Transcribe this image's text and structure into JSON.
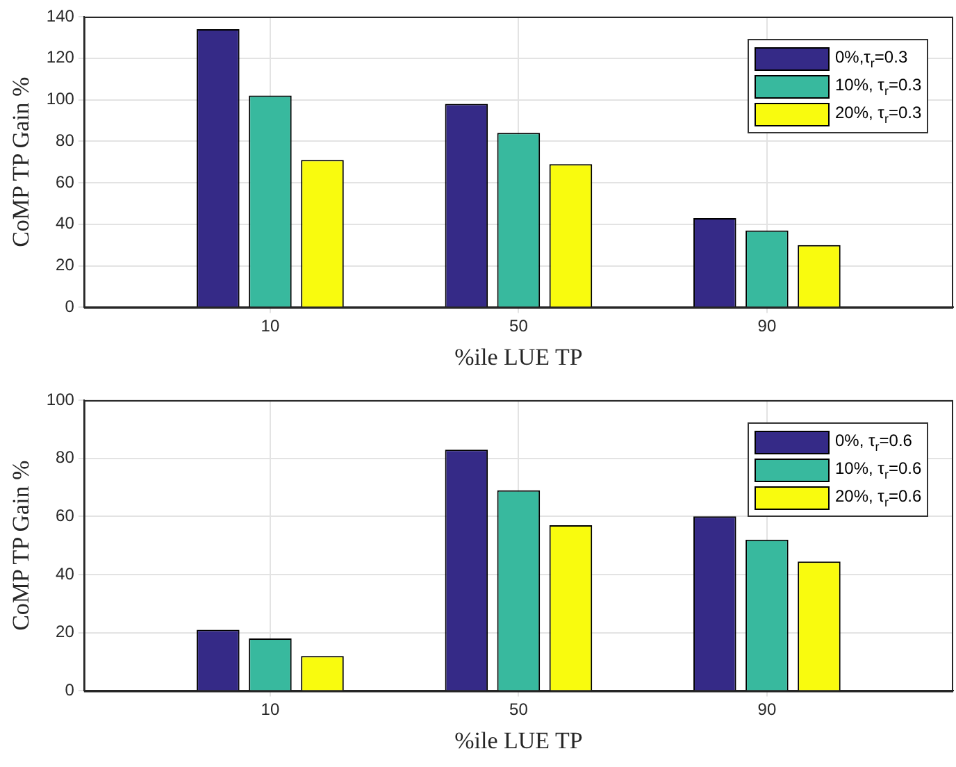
{
  "chart_data": [
    {
      "type": "bar",
      "xlabel": "%ile LUE TP",
      "ylabel": "CoMP TP Gain %",
      "x": [
        10,
        50,
        90
      ],
      "xlim": [
        -20,
        120
      ],
      "xticks": [
        10,
        50,
        90
      ],
      "ylim": [
        0,
        140
      ],
      "yticks": [
        0,
        20,
        40,
        60,
        80,
        100,
        120,
        140
      ],
      "grid": true,
      "legend": "top right",
      "series": [
        {
          "name": "0%,τ$_{r}$=0.3",
          "color": "#352a87",
          "values": [
            134,
            98,
            43
          ]
        },
        {
          "name": "10%, τ$_{r}$=0.3",
          "color": "#38b99e",
          "values": [
            102,
            84,
            37
          ]
        },
        {
          "name": "20%, τ$_{r}$=0.3",
          "color": "#f9fb0e",
          "values": [
            71,
            69,
            30
          ]
        }
      ]
    },
    {
      "type": "bar",
      "xlabel": "%ile LUE TP",
      "ylabel": "CoMP TP Gain %",
      "x": [
        10,
        50,
        90
      ],
      "xlim": [
        -20,
        120
      ],
      "xticks": [
        10,
        50,
        90
      ],
      "ylim": [
        0,
        100
      ],
      "yticks": [
        0,
        20,
        40,
        60,
        80,
        100
      ],
      "grid": true,
      "legend": "top right",
      "series": [
        {
          "name": "0%, τ$_{r}$=0.6",
          "color": "#352a87",
          "values": [
            21,
            83,
            60
          ]
        },
        {
          "name": "10%, τ$_{r}$=0.6",
          "color": "#38b99e",
          "values": [
            18,
            69,
            52
          ]
        },
        {
          "name": "20%, τ$_{r}$=0.6",
          "color": "#f9fb0e",
          "values": [
            12,
            57,
            44.5
          ]
        }
      ]
    }
  ]
}
